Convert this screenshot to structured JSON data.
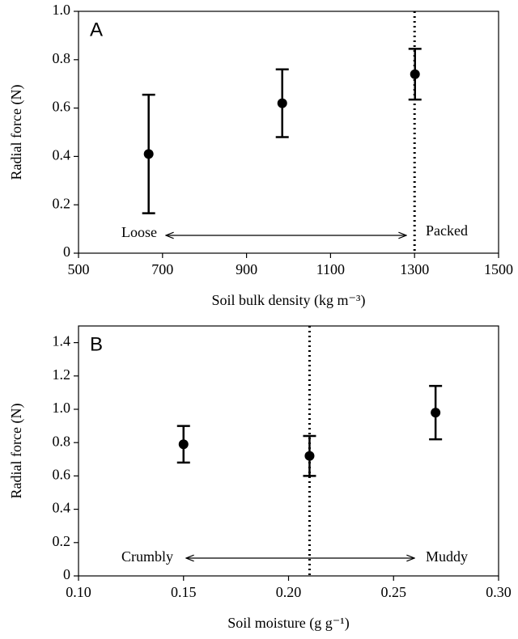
{
  "chart_data": [
    {
      "type": "scatter",
      "panel": "A",
      "xlabel": "Soil bulk density (kg m⁻³)",
      "ylabel": "Radial force (N)",
      "x": [
        667,
        985,
        1301
      ],
      "values": [
        0.41,
        0.62,
        0.74
      ],
      "errors": [
        0.245,
        0.14,
        0.105
      ],
      "xlim": [
        500,
        1500
      ],
      "xticks": [
        500,
        700,
        900,
        1100,
        1300,
        1500
      ],
      "ylim": [
        0,
        1
      ],
      "yticks": [
        0,
        0.2,
        0.4,
        0.6,
        0.8,
        {
          "value": 1,
          "label": "1.0"
        }
      ],
      "vline": 1300,
      "left_annotation": "Loose",
      "right_annotation": "Packed",
      "color": "#000000"
    },
    {
      "type": "scatter",
      "panel": "B",
      "xlabel": "Soil moisture (g g⁻¹)",
      "ylabel": "Radial force (N)",
      "x": [
        0.15,
        0.21,
        0.27
      ],
      "values": [
        0.79,
        0.72,
        0.98
      ],
      "errors": [
        0.11,
        0.12,
        0.16
      ],
      "xlim": [
        0.1,
        0.3
      ],
      "xticks": [
        {
          "value": 0.1,
          "label": "0.10"
        },
        0.15,
        {
          "value": 0.2,
          "label": "0.20"
        },
        0.25,
        {
          "value": 0.3,
          "label": "0.30"
        }
      ],
      "ylim": [
        0,
        1.5
      ],
      "yticks": [
        0,
        0.2,
        0.4,
        0.6,
        0.8,
        {
          "value": 1,
          "label": "1.0"
        },
        1.2,
        1.4
      ],
      "vline": 0.21,
      "left_annotation": "Crumbly",
      "right_annotation": "Muddy",
      "color": "#000000"
    }
  ]
}
